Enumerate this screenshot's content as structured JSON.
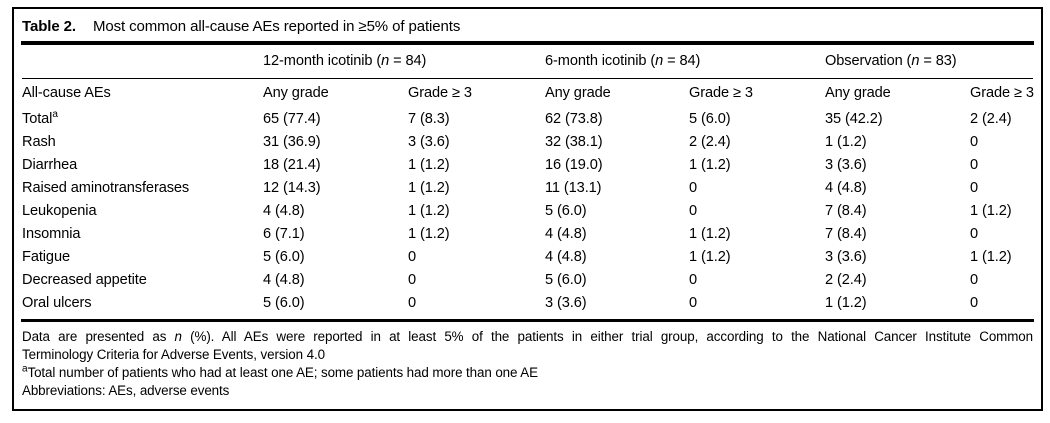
{
  "table": {
    "title_label": "Table 2.",
    "title": "Most common all-cause AEs reported in ≥5% of patients",
    "groups": [
      "12-month icotinib (n = 84)",
      "6-month icotinib (n = 84)",
      "Observation (n = 83)"
    ],
    "stub_header": "All-cause AEs",
    "subheaders": [
      "Any grade",
      "Grade ≥ 3",
      "Any grade",
      "Grade ≥ 3",
      "Any grade",
      "Grade ≥ 3"
    ],
    "rows": [
      {
        "label": "Total",
        "sup": "a",
        "values": [
          "65 (77.4)",
          "7 (8.3)",
          "62 (73.8)",
          "5 (6.0)",
          "35 (42.2)",
          "2 (2.4)"
        ]
      },
      {
        "label": "Rash",
        "values": [
          "31 (36.9)",
          "3 (3.6)",
          "32 (38.1)",
          "2 (2.4)",
          "1 (1.2)",
          "0"
        ]
      },
      {
        "label": "Diarrhea",
        "values": [
          "18 (21.4)",
          "1 (1.2)",
          "16 (19.0)",
          "1 (1.2)",
          "3 (3.6)",
          "0"
        ]
      },
      {
        "label": "Raised aminotransferases",
        "values": [
          "12 (14.3)",
          "1 (1.2)",
          "11 (13.1)",
          "0",
          "4 (4.8)",
          "0"
        ]
      },
      {
        "label": "Leukopenia",
        "values": [
          "4 (4.8)",
          "1 (1.2)",
          "5 (6.0)",
          "0",
          "7 (8.4)",
          "1 (1.2)"
        ]
      },
      {
        "label": "Insomnia",
        "values": [
          "6 (7.1)",
          "1 (1.2)",
          "4 (4.8)",
          "1 (1.2)",
          "7 (8.4)",
          "0"
        ]
      },
      {
        "label": "Fatigue",
        "values": [
          "5 (6.0)",
          "0",
          "4 (4.8)",
          "1 (1.2)",
          "3 (3.6)",
          "1 (1.2)"
        ]
      },
      {
        "label": "Decreased appetite",
        "values": [
          "4 (4.8)",
          "0",
          "5 (6.0)",
          "0",
          "2 (2.4)",
          "0"
        ]
      },
      {
        "label": "Oral ulcers",
        "values": [
          "5 (6.0)",
          "0",
          "3 (3.6)",
          "0",
          "1 (1.2)",
          "0"
        ]
      }
    ],
    "footnotes": [
      {
        "text": "Data are presented as n (%). All AEs were reported in at least 5% of the patients in either trial group, according to the National Cancer Institute Common"
      },
      {
        "text": "Terminology Criteria for Adverse Events, version 4.0"
      },
      {
        "sup": "a",
        "text": "Total number of patients who had at least one AE; some patients had more than one AE"
      },
      {
        "text": "Abbreviations: AEs, adverse events"
      }
    ]
  },
  "colors": {
    "text": "#000000",
    "background": "#ffffff",
    "rule": "#000000"
  }
}
